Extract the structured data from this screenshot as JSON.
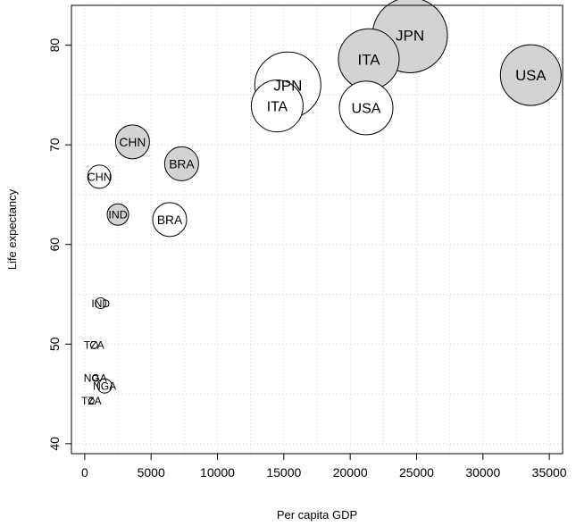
{
  "chart_data": {
    "type": "scatter",
    "title": "",
    "xlabel": "Per capita GDP",
    "ylabel": "Life expectancy",
    "xlim": [
      -1000,
      36000
    ],
    "ylim": [
      39,
      84
    ],
    "x_ticks": [
      0,
      5000,
      10000,
      15000,
      20000,
      25000,
      30000,
      35000
    ],
    "y_ticks": [
      40,
      50,
      60,
      70,
      80
    ],
    "grid": true,
    "colors": {
      "filled": "#d3d3d3",
      "open": "#ffffff",
      "stroke": "#000000"
    },
    "series": [
      {
        "fill": "#d3d3d3",
        "points": [
          {
            "label": "JPN",
            "x": 24500,
            "y": 81.0,
            "size": 4.2
          },
          {
            "label": "ITA",
            "x": 21400,
            "y": 78.6,
            "size": 3.4
          },
          {
            "label": "USA",
            "x": 33600,
            "y": 77.0,
            "size": 3.4
          },
          {
            "label": "CHN",
            "x": 3600,
            "y": 70.3,
            "size": 1.9
          },
          {
            "label": "BRA",
            "x": 7300,
            "y": 68.1,
            "size": 1.9
          },
          {
            "label": "IND",
            "x": 2500,
            "y": 63.0,
            "size": 1.2
          }
        ]
      },
      {
        "fill": "#ffffff",
        "points": [
          {
            "label": "JPN",
            "x": 15300,
            "y": 76.0,
            "size": 3.7
          },
          {
            "label": "ITA",
            "x": 14500,
            "y": 73.9,
            "size": 2.9
          },
          {
            "label": "USA",
            "x": 21200,
            "y": 73.7,
            "size": 3.0
          },
          {
            "label": "CHN",
            "x": 1100,
            "y": 66.8,
            "size": 1.3
          },
          {
            "label": "BRA",
            "x": 6400,
            "y": 62.5,
            "size": 1.9
          },
          {
            "label": "IND",
            "x": 1200,
            "y": 54.1,
            "size": 0.6
          },
          {
            "label": "TZA",
            "x": 700,
            "y": 49.9,
            "size": 0.4
          },
          {
            "label": "NGA",
            "x": 1500,
            "y": 45.8,
            "size": 0.8
          },
          {
            "label": "NGA",
            "x": 800,
            "y": 46.6,
            "size": 0.3
          },
          {
            "label": "TZA",
            "x": 500,
            "y": 44.3,
            "size": 0.3
          }
        ]
      }
    ]
  }
}
